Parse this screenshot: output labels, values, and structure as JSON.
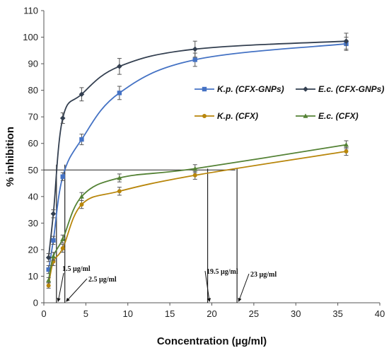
{
  "chart_data": {
    "type": "line",
    "title": "",
    "xlabel": "Concentration (µg/ml)",
    "ylabel": "% inhibition",
    "xlim": [
      0,
      40
    ],
    "ylim": [
      0,
      110
    ],
    "xticks": [
      0,
      5,
      10,
      15,
      20,
      25,
      30,
      35,
      40
    ],
    "yticks": [
      0,
      10,
      20,
      30,
      40,
      50,
      60,
      70,
      80,
      90,
      100,
      110
    ],
    "grid": false,
    "legend_position": "right-middle",
    "series": [
      {
        "name": "K.p. (CFX-GNPs)",
        "color": "#4472c4",
        "marker": "square",
        "x": [
          0.56,
          1.13,
          2.25,
          4.5,
          9,
          18,
          36
        ],
        "y": [
          12.5,
          23.5,
          47.5,
          61.5,
          79,
          91.5,
          97.5
        ],
        "err": [
          1.5,
          1.5,
          1.5,
          2,
          2.5,
          2.5,
          2.5
        ]
      },
      {
        "name": "E.c. (CFX-GNPs)",
        "color": "#333f50",
        "marker": "diamond",
        "x": [
          0.56,
          1.13,
          2.25,
          4.5,
          9,
          18,
          36
        ],
        "y": [
          17,
          33.5,
          69.5,
          78.5,
          89,
          95.5,
          98.5
        ],
        "err": [
          1.5,
          1.5,
          2,
          2.5,
          3,
          3,
          3
        ]
      },
      {
        "name": "K.p. (CFX)",
        "color": "#b8860b",
        "marker": "circle",
        "x": [
          0.56,
          1.13,
          2.25,
          4.5,
          9,
          18,
          36
        ],
        "y": [
          6.5,
          15.5,
          20.5,
          37,
          42,
          48,
          57
        ],
        "err": [
          1,
          1.5,
          1.5,
          1.5,
          1.5,
          1.5,
          1.5
        ]
      },
      {
        "name": "E.c. (CFX)",
        "color": "#548235",
        "marker": "triangle",
        "x": [
          0.56,
          1.13,
          2.25,
          4.5,
          9,
          18,
          36
        ],
        "y": [
          8.5,
          17.5,
          24,
          40,
          47,
          50.5,
          59.5
        ],
        "err": [
          1,
          1.5,
          1.5,
          1.5,
          1.5,
          1.5,
          1.5
        ]
      }
    ],
    "reference_line": {
      "y": 50,
      "x_from": 0,
      "x_to": 22.8
    },
    "annotations": [
      {
        "text": "1.5 µg/ml",
        "x": 1.5
      },
      {
        "text": "2.5 µg/ml",
        "x": 2.5
      },
      {
        "text": "19.5 µg/ml",
        "x": 19.5
      },
      {
        "text": "23 µg/ml",
        "x": 23
      }
    ]
  }
}
